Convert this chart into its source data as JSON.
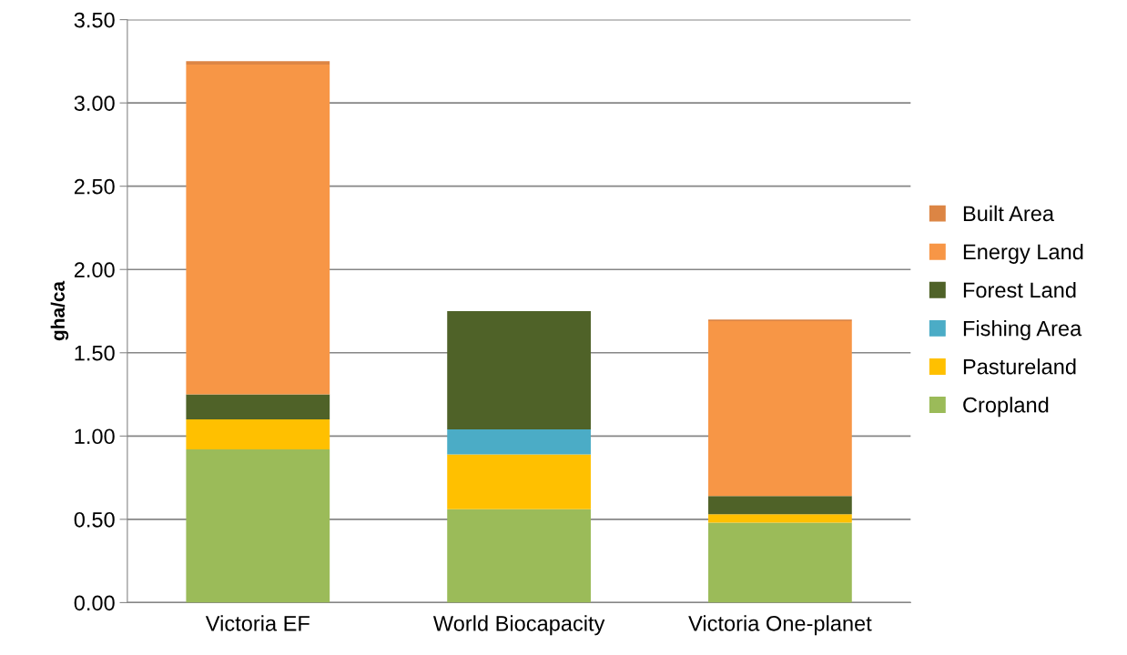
{
  "chart_data": {
    "type": "bar",
    "stacked": true,
    "ylabel": "gha/ca",
    "categories": [
      "Victoria EF",
      "World Biocapacity",
      "Victoria One-planet"
    ],
    "series": [
      {
        "name": "Cropland",
        "color": "#9bbb59",
        "values": [
          0.92,
          0.56,
          0.48
        ]
      },
      {
        "name": "Pastureland",
        "color": "#ffc000",
        "values": [
          0.18,
          0.33,
          0.05
        ]
      },
      {
        "name": "Fishing Area",
        "color": "#4bacc6",
        "values": [
          0,
          0.15,
          0
        ]
      },
      {
        "name": "Forest Land",
        "color": "#4f6228",
        "values": [
          0.15,
          0.71,
          0.11
        ]
      },
      {
        "name": "Energy Land",
        "color": "#f79646",
        "values": [
          1.98,
          0,
          1.05
        ]
      },
      {
        "name": "Built Area",
        "color": "#dc8544",
        "values": [
          0.02,
          0,
          0.01
        ]
      }
    ],
    "ylim": [
      0,
      3.5
    ],
    "yticks": [
      {
        "value": 0,
        "label": "0.00"
      },
      {
        "value": 0.5,
        "label": "0.50"
      },
      {
        "value": 1,
        "label": "1.00"
      },
      {
        "value": 1.5,
        "label": "1.50"
      },
      {
        "value": 2,
        "label": "2.00"
      },
      {
        "value": 2.5,
        "label": "2.50"
      },
      {
        "value": 3,
        "label": "3.00"
      },
      {
        "value": 3.5,
        "label": "3.50"
      }
    ],
    "grid": "y",
    "legend": "right"
  }
}
